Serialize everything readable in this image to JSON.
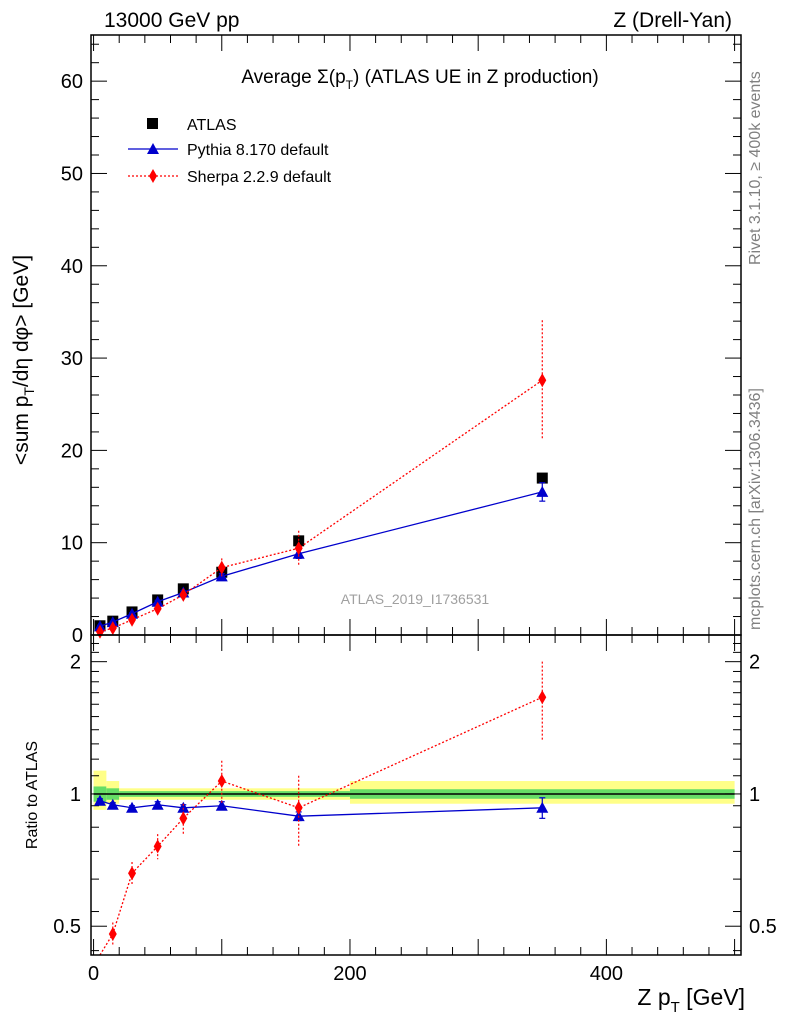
{
  "header": {
    "left": "13000 GeV pp",
    "right": "Z (Drell-Yan)"
  },
  "side_labels": {
    "rivet": "Rivet 3.1.10, ≥ 400k events",
    "source": "mcplots.cern.ch [arXiv:1306.3436]"
  },
  "chart_data": [
    {
      "type": "scatter",
      "title_prefix": "Average ",
      "title_sigma": "Σ(p",
      "title_sub": "T",
      "title_suffix": ") (ATLAS UE in Z production)",
      "ylabel": "<sum p_T/dη dφ> [GeV]",
      "ylim": [
        0,
        65
      ],
      "yticks": [
        0,
        10,
        20,
        30,
        40,
        50,
        60
      ],
      "xlim": [
        -2,
        505
      ],
      "watermark": "ATLAS_2019_I1736531",
      "legend": [
        "ATLAS",
        "Pythia 8.170 default",
        "Sherpa 2.2.9 default"
      ],
      "legend_position": "top-left",
      "series": [
        {
          "name": "ATLAS",
          "color": "#000000",
          "marker": "square",
          "x": [
            5,
            15,
            30,
            50,
            70,
            100,
            160,
            350
          ],
          "y": [
            1.0,
            1.5,
            2.5,
            3.8,
            5.0,
            6.8,
            10.2,
            17.0
          ]
        },
        {
          "name": "Pythia 8.170 default",
          "color": "#0000cc",
          "marker": "triangle",
          "x": [
            5,
            15,
            30,
            50,
            70,
            100,
            160,
            350
          ],
          "y": [
            0.95,
            1.4,
            2.3,
            3.6,
            4.6,
            6.35,
            8.8,
            15.5
          ],
          "yerr": [
            0.1,
            0.1,
            0.1,
            0.15,
            0.2,
            0.3,
            0.5,
            1.0
          ]
        },
        {
          "name": "Sherpa 2.2.9 default",
          "color": "#ff0000",
          "marker": "diamond",
          "x": [
            5,
            15,
            30,
            50,
            70,
            100,
            160,
            350
          ],
          "y": [
            0.35,
            0.75,
            1.65,
            2.85,
            4.35,
            7.3,
            9.4,
            27.6
          ],
          "yerr": [
            0.1,
            0.15,
            0.25,
            0.4,
            0.6,
            1.0,
            1.9,
            6.5
          ]
        }
      ]
    },
    {
      "type": "scatter",
      "ylabel": "Ratio to ATLAS",
      "ylim": [
        0.43,
        2.3
      ],
      "yticks": [
        0.5,
        1,
        2
      ],
      "xlabel": "Z p_T [GeV]",
      "xlim": [
        -2,
        505
      ],
      "xticks": [
        0,
        200,
        400
      ],
      "reference_line": 1.0,
      "uncertainty_bands": [
        {
          "x0": 0,
          "x1": 10,
          "inner": [
            0.96,
            1.04
          ],
          "outer": [
            0.92,
            1.13
          ]
        },
        {
          "x0": 10,
          "x1": 20,
          "inner": [
            0.97,
            1.03
          ],
          "outer": [
            0.95,
            1.07
          ]
        },
        {
          "x0": 20,
          "x1": 200,
          "inner": [
            0.985,
            1.015
          ],
          "outer": [
            0.97,
            1.03
          ]
        },
        {
          "x0": 200,
          "x1": 500,
          "inner": [
            0.975,
            1.025
          ],
          "outer": [
            0.95,
            1.07
          ]
        }
      ],
      "band_colors": {
        "inner": "#66dd66",
        "outer": "#ffff88"
      },
      "series": [
        {
          "name": "Pythia 8.170 default",
          "color": "#0000cc",
          "marker": "triangle",
          "x": [
            5,
            15,
            30,
            50,
            70,
            100,
            160,
            350
          ],
          "y": [
            0.965,
            0.945,
            0.93,
            0.945,
            0.93,
            0.94,
            0.89,
            0.93
          ],
          "yerr": [
            0.01,
            0.01,
            0.01,
            0.015,
            0.015,
            0.02,
            0.02,
            0.05
          ]
        },
        {
          "name": "Sherpa 2.2.9 default",
          "color": "#ff0000",
          "marker": "diamond",
          "x": [
            5,
            15,
            30,
            50,
            70,
            100,
            160,
            350
          ],
          "y": [
            0.35,
            0.48,
            0.66,
            0.76,
            0.88,
            1.07,
            0.93,
            1.66
          ],
          "yerr": [
            0.02,
            0.03,
            0.04,
            0.05,
            0.07,
            0.12,
            0.17,
            0.34
          ]
        }
      ]
    }
  ]
}
